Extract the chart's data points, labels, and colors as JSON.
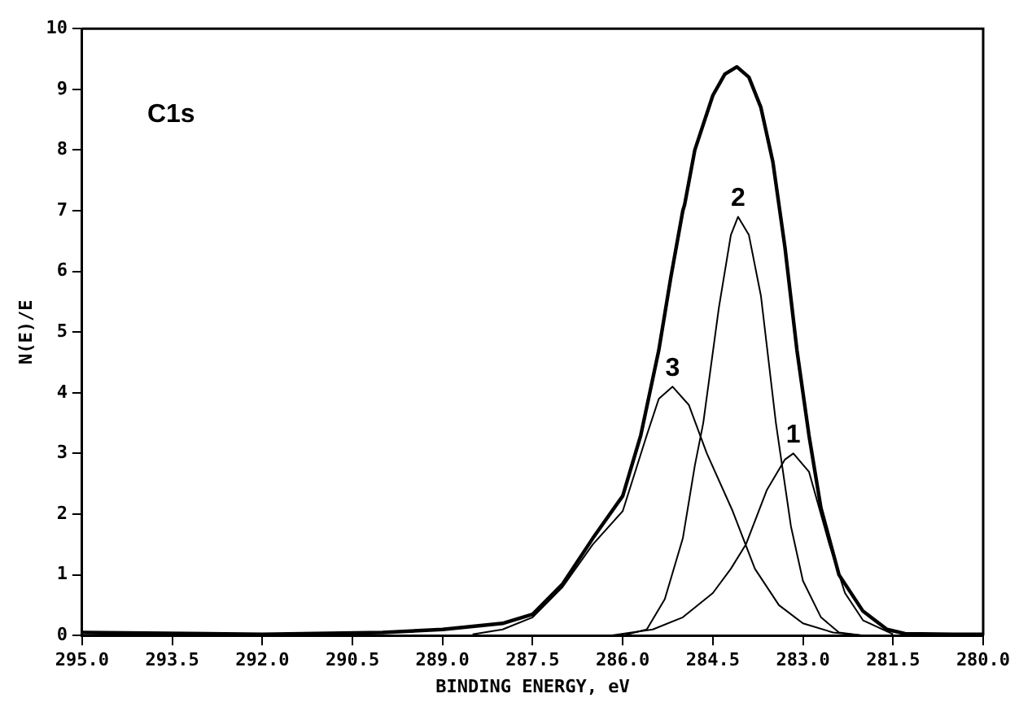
{
  "chart_data": {
    "type": "line",
    "xlabel": "BINDING ENERGY, eV",
    "ylabel": "N(E)/E",
    "xlim": [
      295,
      280
    ],
    "xticks": [
      {
        "value": 295,
        "label": "295.0"
      },
      {
        "value": 293.5,
        "label": "293.5"
      },
      {
        "value": 292,
        "label": "292.0"
      },
      {
        "value": 290.5,
        "label": "290.5"
      },
      {
        "value": 289,
        "label": "289.0"
      },
      {
        "value": 287.5,
        "label": "287.5"
      },
      {
        "value": 286,
        "label": "286.0"
      },
      {
        "value": 284.5,
        "label": "284.5"
      },
      {
        "value": 283,
        "label": "283.0"
      },
      {
        "value": 281.5,
        "label": "281.5"
      },
      {
        "value": 280,
        "label": "280.0"
      }
    ],
    "ylim": [
      0,
      10
    ],
    "yticks": [
      0,
      1,
      2,
      3,
      4,
      5,
      6,
      7,
      8,
      9,
      10
    ],
    "grid": false,
    "legend": false,
    "marker": "none",
    "line_style": "solid",
    "series": [
      {
        "color": "#000000",
        "x": [
          295,
          292,
          290,
          289,
          288,
          287.5,
          287,
          286.5,
          286,
          285.7,
          285.4,
          285.2,
          285,
          284.97,
          284.8,
          284.5,
          284.3,
          284.1,
          283.9,
          283.7,
          283.5,
          283.3,
          283.1,
          282.9,
          282.7,
          282.4,
          282,
          281.6,
          281.3,
          280.5,
          280
        ],
        "values": [
          0.05,
          0.02,
          0.05,
          0.1,
          0.2,
          0.35,
          0.85,
          1.6,
          2.3,
          3.3,
          4.7,
          5.9,
          7,
          7.1,
          8,
          8.9,
          9.25,
          9.37,
          9.2,
          8.7,
          7.8,
          6.4,
          4.7,
          3.3,
          2.1,
          1,
          0.4,
          0.1,
          0.03,
          0.02,
          0.02
        ]
      },
      {
        "color": "#000000",
        "x": [
          286,
          285.6,
          285.3,
          285,
          284.8,
          284.66,
          284.4,
          284.2,
          284.08,
          283.9,
          283.7,
          283.45,
          283.2,
          283,
          282.7,
          282.4,
          282
        ],
        "values": [
          0,
          0.1,
          0.6,
          1.6,
          2.8,
          3.5,
          5.4,
          6.6,
          6.9,
          6.6,
          5.6,
          3.5,
          1.8,
          0.9,
          0.3,
          0.05,
          0
        ]
      },
      {
        "color": "#000000",
        "x": [
          288.5,
          288,
          287.5,
          287,
          286.5,
          286,
          285.6,
          285.4,
          285.17,
          284.9,
          284.6,
          284.17,
          283.8,
          283.4,
          283,
          282.5,
          282
        ],
        "values": [
          0.02,
          0.1,
          0.3,
          0.8,
          1.5,
          2.05,
          3.3,
          3.9,
          4.1,
          3.8,
          3,
          2.05,
          1.1,
          0.5,
          0.2,
          0.05,
          0
        ]
      },
      {
        "color": "#000000",
        "x": [
          286.2,
          285.5,
          285,
          284.5,
          284.2,
          283.95,
          283.6,
          283.3,
          283.16,
          282.9,
          282.56,
          282.3,
          282,
          281.5
        ],
        "values": [
          0,
          0.1,
          0.3,
          0.7,
          1.1,
          1.5,
          2.4,
          2.9,
          3,
          2.7,
          1.5,
          0.7,
          0.25,
          0.02
        ]
      }
    ],
    "annotations": [
      "C1s",
      {
        "text": "1",
        "x": 283.16,
        "y": 3
      },
      {
        "text": "2",
        "x": 284.08,
        "y": 6.9
      },
      {
        "text": "3",
        "x": 285.17,
        "y": 4.1
      }
    ]
  }
}
